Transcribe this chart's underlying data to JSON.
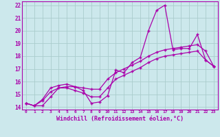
{
  "xlabel": "Windchill (Refroidissement éolien,°C)",
  "xlim": [
    -0.5,
    23.5
  ],
  "ylim": [
    13.8,
    22.3
  ],
  "yticks": [
    14,
    15,
    16,
    17,
    18,
    19,
    20,
    21,
    22
  ],
  "xticks": [
    0,
    1,
    2,
    3,
    4,
    5,
    6,
    7,
    8,
    9,
    10,
    11,
    12,
    13,
    14,
    15,
    16,
    17,
    18,
    19,
    20,
    21,
    22,
    23
  ],
  "bg_color": "#cce8ec",
  "grid_color": "#aacccc",
  "line_color": "#aa00aa",
  "line1": [
    14.3,
    14.1,
    14.1,
    14.8,
    15.5,
    15.6,
    15.6,
    15.3,
    14.3,
    14.4,
    14.9,
    16.9,
    16.7,
    17.5,
    17.9,
    20.0,
    21.6,
    22.0,
    18.5,
    18.6,
    18.6,
    19.7,
    17.7,
    17.2
  ],
  "line2": [
    14.3,
    14.1,
    14.6,
    15.5,
    15.7,
    15.8,
    15.6,
    15.5,
    15.4,
    15.4,
    16.2,
    16.7,
    17.0,
    17.3,
    17.6,
    18.0,
    18.3,
    18.5,
    18.6,
    18.7,
    18.8,
    18.9,
    18.4,
    17.2
  ],
  "line3": [
    14.3,
    14.1,
    14.5,
    15.2,
    15.5,
    15.5,
    15.3,
    15.1,
    14.8,
    14.8,
    15.5,
    16.2,
    16.5,
    16.8,
    17.1,
    17.5,
    17.8,
    18.0,
    18.1,
    18.2,
    18.3,
    18.4,
    17.7,
    17.2
  ]
}
